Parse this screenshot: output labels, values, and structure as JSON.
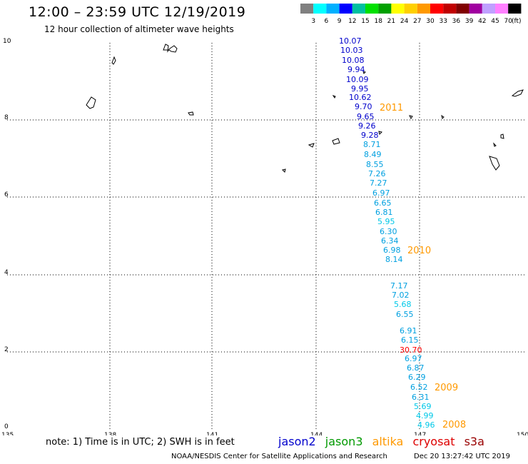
{
  "header": {
    "title": "12:00 – 23:59 UTC 12/19/2019",
    "subtitle": "12 hour collection of altimeter wave heights"
  },
  "legend": {
    "unit": "(ft)",
    "bins": [
      {
        "label": "3",
        "color": "#808080"
      },
      {
        "label": "6",
        "color": "#00ffff"
      },
      {
        "label": "9",
        "color": "#00b0ff"
      },
      {
        "label": "12",
        "color": "#0000ff"
      },
      {
        "label": "15",
        "color": "#00c0a0"
      },
      {
        "label": "18",
        "color": "#00e000"
      },
      {
        "label": "21",
        "color": "#00a000"
      },
      {
        "label": "24",
        "color": "#ffff00"
      },
      {
        "label": "27",
        "color": "#ffd000"
      },
      {
        "label": "30",
        "color": "#ff9900"
      },
      {
        "label": "33",
        "color": "#ff0000"
      },
      {
        "label": "36",
        "color": "#c00000"
      },
      {
        "label": "39",
        "color": "#800000"
      },
      {
        "label": "42",
        "color": "#a000a0"
      },
      {
        "label": "45",
        "color": "#c0a0ff"
      },
      {
        "label": "70",
        "color": "#ff80ff"
      },
      {
        "label": "",
        "color": "#000000"
      }
    ]
  },
  "axes": {
    "lon_labels": [
      "135",
      "138",
      "141",
      "144",
      "147",
      "150"
    ],
    "lat_labels": [
      "0",
      "2",
      "4",
      "6",
      "8",
      "10"
    ]
  },
  "observations": [
    {
      "text": "10.07",
      "color": "#0000cc"
    },
    {
      "text": "10.03",
      "color": "#0000cc"
    },
    {
      "text": "10.08",
      "color": "#0000cc"
    },
    {
      "text": "9.94",
      "color": "#0000cc"
    },
    {
      "text": "10.09",
      "color": "#0000cc"
    },
    {
      "text": "9.95",
      "color": "#0000cc"
    },
    {
      "text": "10.62",
      "color": "#0000cc"
    },
    {
      "text": "9.70",
      "color": "#0000cc"
    },
    {
      "text": "9.65",
      "color": "#0000cc"
    },
    {
      "text": "9.26",
      "color": "#0000cc"
    },
    {
      "text": "9.28",
      "color": "#0000cc"
    },
    {
      "text": "8.71",
      "color": "#00a0e0"
    },
    {
      "text": "8.49",
      "color": "#00a0e0"
    },
    {
      "text": "8.55",
      "color": "#00a0e0"
    },
    {
      "text": "7.26",
      "color": "#00a0e0"
    },
    {
      "text": "7.27",
      "color": "#00a0e0"
    },
    {
      "text": "6.97",
      "color": "#00a0e0"
    },
    {
      "text": "6.65",
      "color": "#00a0e0"
    },
    {
      "text": "6.81",
      "color": "#00a0e0"
    },
    {
      "text": "5.95",
      "color": "#00c8e8"
    },
    {
      "text": "6.30",
      "color": "#00a0e0"
    },
    {
      "text": "6.34",
      "color": "#00a0e0"
    },
    {
      "text": "6.98",
      "color": "#00a0e0"
    },
    {
      "text": "8.14",
      "color": "#00a0e0"
    },
    {
      "text": "7.17",
      "color": "#00a0e0"
    },
    {
      "text": "7.02",
      "color": "#00a0e0"
    },
    {
      "text": "5.68",
      "color": "#00c8e8"
    },
    {
      "text": "6.55",
      "color": "#00a0e0"
    },
    {
      "text": "6.91",
      "color": "#00a0e0"
    },
    {
      "text": "6.15",
      "color": "#00a0e0"
    },
    {
      "text": "30.70",
      "color": "#ff0000"
    },
    {
      "text": "6.97",
      "color": "#00a0e0"
    },
    {
      "text": "6.87",
      "color": "#00a0e0"
    },
    {
      "text": "6.29",
      "color": "#00a0e0"
    },
    {
      "text": "6.52",
      "color": "#00a0e0"
    },
    {
      "text": "6.31",
      "color": "#00a0e0"
    },
    {
      "text": "5.69",
      "color": "#00c8e8"
    },
    {
      "text": "4.99",
      "color": "#00c8e8"
    },
    {
      "text": "4.96",
      "color": "#00c8e8"
    }
  ],
  "pass_labels": [
    "2011",
    "2010",
    "2009",
    "2008"
  ],
  "footer": {
    "note": "note:  1) Time is in UTC;  2) SWH is in feet",
    "satellites": [
      {
        "name": "jason2",
        "color": "#0000cc"
      },
      {
        "name": "jason3",
        "color": "#009900"
      },
      {
        "name": "altika",
        "color": "#ff9900"
      },
      {
        "name": "cryosat",
        "color": "#dd0000"
      },
      {
        "name": "s3a",
        "color": "#990000"
      }
    ],
    "credit": "NOAA/NESDIS Center for Satellite Applications and Research",
    "timestamp": "Dec 20 13:27:42 UTC 2019"
  }
}
